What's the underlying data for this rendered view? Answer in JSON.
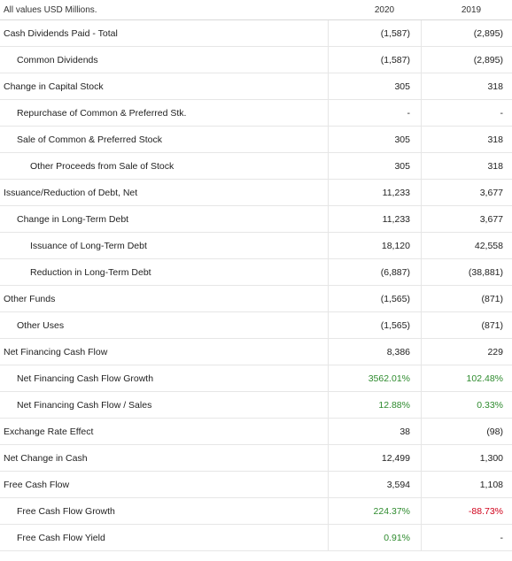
{
  "header": {
    "note": "All values USD Millions.",
    "col1": "2020",
    "col2": "2019"
  },
  "colors": {
    "positive": "#2e8b2e",
    "negative": "#d0021b"
  },
  "rows": [
    {
      "label": "Cash Dividends Paid - Total",
      "level": 0,
      "v2020": "(1,587)",
      "v2019": "(2,895)"
    },
    {
      "label": "Common Dividends",
      "level": 1,
      "v2020": "(1,587)",
      "v2019": "(2,895)"
    },
    {
      "label": "Change in Capital Stock",
      "level": 0,
      "v2020": "305",
      "v2019": "318"
    },
    {
      "label": "Repurchase of Common & Preferred Stk.",
      "level": 1,
      "v2020": "-",
      "v2019": "-"
    },
    {
      "label": "Sale of Common & Preferred Stock",
      "level": 1,
      "v2020": "305",
      "v2019": "318"
    },
    {
      "label": "Other Proceeds from Sale of Stock",
      "level": 2,
      "v2020": "305",
      "v2019": "318"
    },
    {
      "label": "Issuance/Reduction of Debt, Net",
      "level": 0,
      "v2020": "11,233",
      "v2019": "3,677"
    },
    {
      "label": "Change in Long-Term Debt",
      "level": 1,
      "v2020": "11,233",
      "v2019": "3,677"
    },
    {
      "label": "Issuance of Long-Term Debt",
      "level": 2,
      "v2020": "18,120",
      "v2019": "42,558"
    },
    {
      "label": "Reduction in Long-Term Debt",
      "level": 2,
      "v2020": "(6,887)",
      "v2019": "(38,881)"
    },
    {
      "label": "Other Funds",
      "level": 0,
      "v2020": "(1,565)",
      "v2019": "(871)"
    },
    {
      "label": "Other Uses",
      "level": 1,
      "v2020": "(1,565)",
      "v2019": "(871)"
    },
    {
      "label": "Net Financing Cash Flow",
      "level": 0,
      "v2020": "8,386",
      "v2019": "229"
    },
    {
      "label": "Net Financing Cash Flow Growth",
      "level": 1,
      "v2020": "3562.01%",
      "v2019": "102.48%",
      "c2020": "pos",
      "c2019": "pos"
    },
    {
      "label": "Net Financing Cash Flow / Sales",
      "level": 1,
      "v2020": "12.88%",
      "v2019": "0.33%",
      "c2020": "pos",
      "c2019": "pos"
    },
    {
      "label": "Exchange Rate Effect",
      "level": 0,
      "v2020": "38",
      "v2019": "(98)"
    },
    {
      "label": "Net Change in Cash",
      "level": 0,
      "v2020": "12,499",
      "v2019": "1,300"
    },
    {
      "label": "Free Cash Flow",
      "level": 0,
      "v2020": "3,594",
      "v2019": "1,108"
    },
    {
      "label": "Free Cash Flow Growth",
      "level": 1,
      "v2020": "224.37%",
      "v2019": "-88.73%",
      "c2020": "pos",
      "c2019": "neg"
    },
    {
      "label": "Free Cash Flow Yield",
      "level": 1,
      "v2020": "0.91%",
      "v2019": "-",
      "c2020": "pos"
    }
  ]
}
